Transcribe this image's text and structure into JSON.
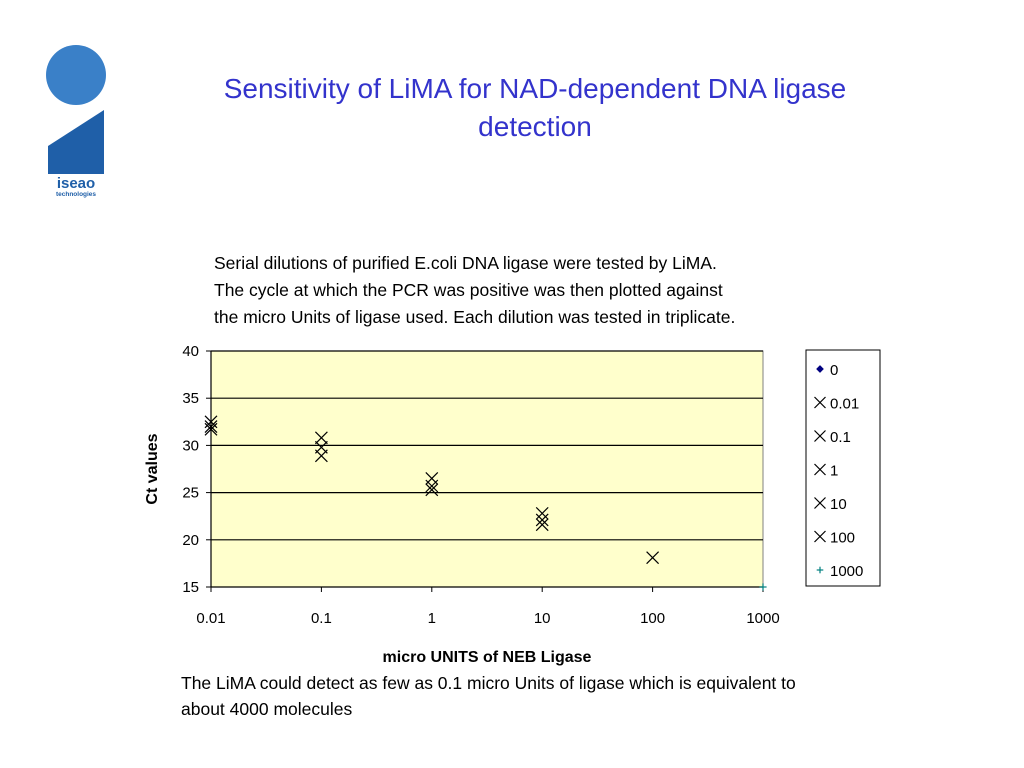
{
  "slide": {
    "title_line1": "Sensitivity of LiMA for NAD-dependent DNA ligase",
    "title_line2": "detection",
    "description": [
      "Serial dilutions of purified E.coli DNA ligase were tested by LiMA.",
      "The cycle at which the PCR was positive was then plotted against",
      "the micro Units of ligase used. Each dilution was tested in triplicate."
    ],
    "conclusion": [
      "The LiMA could detect as few as 0.1 micro Units of ligase which is equivalent to",
      "about 4000 molecules"
    ],
    "logo_text_main": "iseao",
    "logo_text_sub": "technologies"
  },
  "colors": {
    "title": "#3333cc",
    "plot_background": "#ffffcc",
    "logo_blue": "#2e6fb8",
    "logo_light": "#4f8fd0"
  },
  "chart_data": {
    "type": "scatter",
    "xlabel": "micro UNITS of NEB Ligase",
    "ylabel": "Ct values",
    "xscale": "log",
    "x_ticks": [
      "0.01",
      "0.1",
      "1",
      "10",
      "100",
      "1000"
    ],
    "y_ticks": [
      "15",
      "20",
      "25",
      "30",
      "35",
      "40"
    ],
    "xlim": [
      0.01,
      1000
    ],
    "ylim": [
      15,
      40
    ],
    "grid": "horizontal",
    "legend_position": "right",
    "series": [
      {
        "name": "0",
        "marker": "diamond",
        "color": "#000080",
        "points": []
      },
      {
        "name": "0.01",
        "marker": "x",
        "color": "#000000",
        "points": [
          [
            0.01,
            32.5
          ],
          [
            0.01,
            32.0
          ],
          [
            0.01,
            31.7
          ]
        ]
      },
      {
        "name": "0.1",
        "marker": "x",
        "color": "#000000",
        "points": [
          [
            0.1,
            30.8
          ],
          [
            0.1,
            29.8
          ],
          [
            0.1,
            28.9
          ]
        ]
      },
      {
        "name": "1",
        "marker": "x",
        "color": "#000000",
        "points": [
          [
            1,
            26.5
          ],
          [
            1,
            25.7
          ],
          [
            1,
            25.3
          ]
        ]
      },
      {
        "name": "10",
        "marker": "x",
        "color": "#000000",
        "points": [
          [
            10,
            22.8
          ],
          [
            10,
            22.1
          ],
          [
            10,
            21.6
          ]
        ]
      },
      {
        "name": "100",
        "marker": "x",
        "color": "#000000",
        "points": [
          [
            100,
            18.1
          ]
        ]
      },
      {
        "name": "1000",
        "marker": "plus",
        "color": "#008080",
        "points": [
          [
            1000,
            15
          ]
        ]
      }
    ]
  }
}
